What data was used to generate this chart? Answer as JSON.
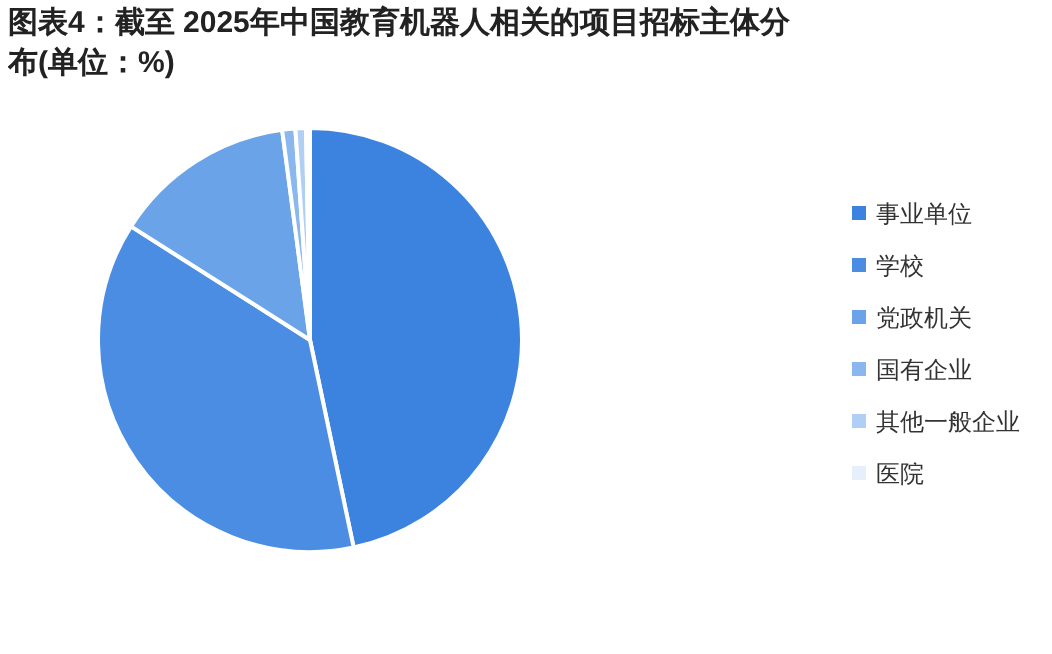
{
  "chart_data": {
    "type": "pie",
    "title": "图表4：截至 2025年中国教育机器人相关的项目招标主体分布(单位：%)",
    "categories": [
      "事业单位",
      "学校",
      "党政机关",
      "国有企业",
      "其他一般企业",
      "医院"
    ],
    "values": [
      46.7,
      37.3,
      13.9,
      1.0,
      0.8,
      0.3
    ],
    "colors": [
      "#3b83df",
      "#4a8de2",
      "#6aa3e8",
      "#8ab8ee",
      "#b0cff4",
      "#e6f0fc"
    ],
    "legend": "right"
  }
}
